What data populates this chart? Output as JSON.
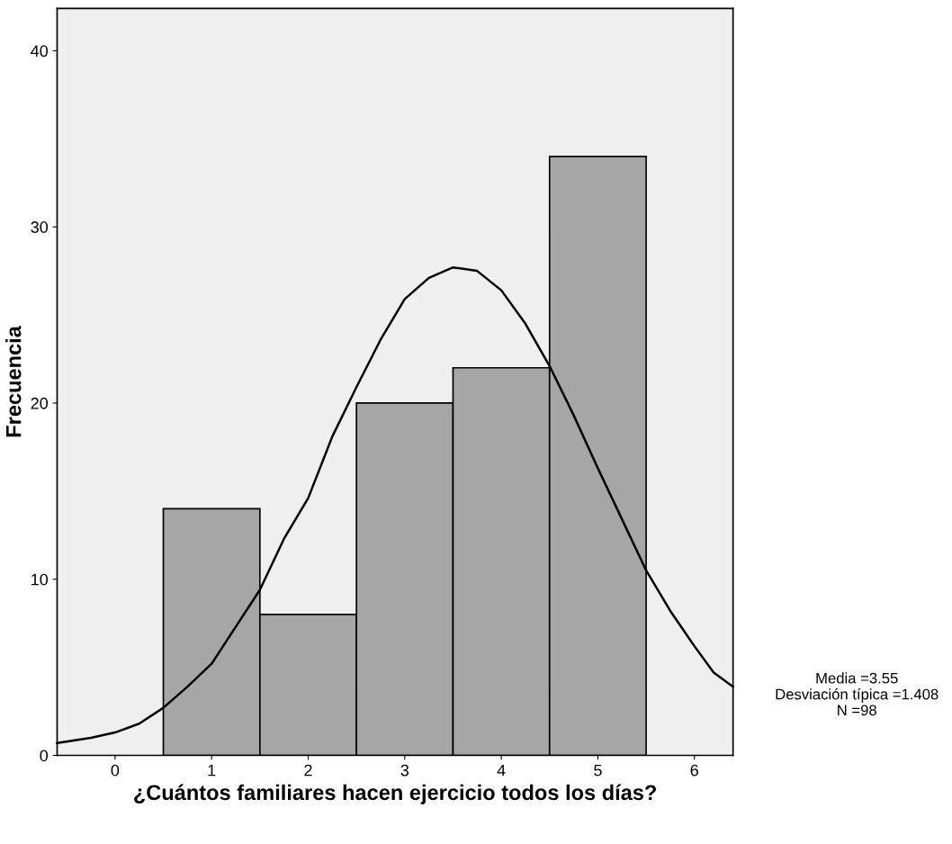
{
  "chart_data": {
    "type": "histogram",
    "xlabel": "¿Cuántos familiares hacen ejercicio todos los días?",
    "ylabel": "Frecuencia",
    "bins": [
      0.5,
      1.5,
      2.5,
      3.5,
      4.5,
      5.5
    ],
    "values": [
      14,
      8,
      20,
      22,
      34
    ],
    "color": "#a6a6a6",
    "series": [
      {
        "type": "line",
        "color": "#000000",
        "x": [
          -0.6,
          -0.25,
          0,
          0.25,
          0.5,
          0.75,
          1,
          1.25,
          1.5,
          1.75,
          2,
          2.25,
          2.5,
          2.75,
          3,
          3.25,
          3.5,
          3.75,
          4,
          4.25,
          4.5,
          4.75,
          5,
          5.25,
          5.5,
          5.75,
          6,
          6.2,
          6.4
        ],
        "values": [
          0.7,
          1.0,
          1.3,
          1.8,
          2.7,
          3.9,
          5.2,
          7.3,
          9.4,
          12.3,
          14.6,
          18.1,
          20.9,
          23.6,
          25.9,
          27.1,
          27.7,
          27.5,
          26.4,
          24.5,
          22.1,
          19.3,
          16.3,
          13.4,
          10.5,
          8.2,
          6.2,
          4.7,
          3.9
        ]
      }
    ],
    "xlim": [
      -0.6,
      6.4
    ],
    "xticks": [
      0,
      1,
      2,
      3,
      4,
      5,
      6
    ],
    "ylim": [
      0,
      42.4
    ],
    "yticks": [
      0,
      10,
      20,
      30,
      40
    ],
    "grid": false,
    "annotations": [
      "Media =3.55",
      "Desviación típica =1.408",
      "N =98"
    ]
  }
}
